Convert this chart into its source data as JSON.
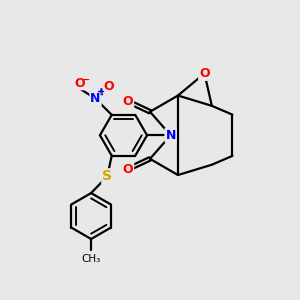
{
  "bg_color": "#e8e8e8",
  "bond_color": "#000000",
  "bond_width": 1.6,
  "atom_colors": {
    "O": "#ff0000",
    "N": "#0000ff",
    "S": "#ccaa00",
    "C": "#000000"
  },
  "figsize": [
    3.0,
    3.0
  ],
  "dpi": 100
}
